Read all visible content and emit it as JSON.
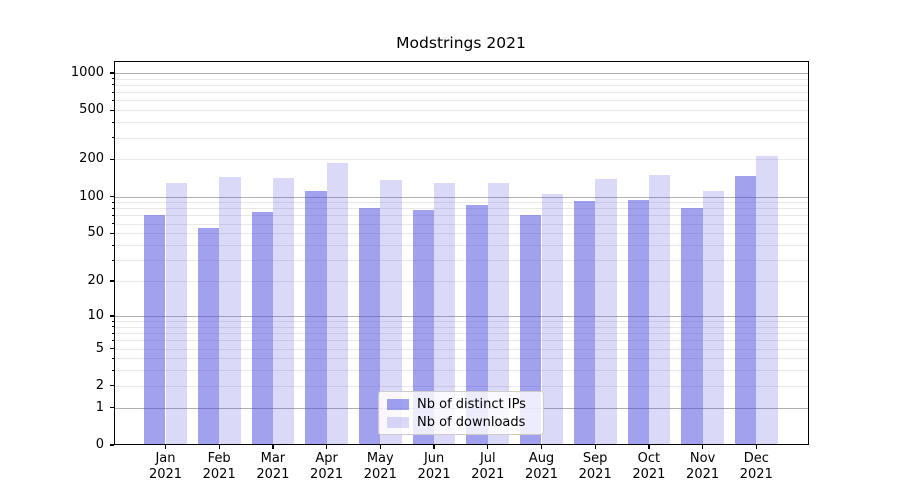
{
  "chart_data": {
    "type": "bar",
    "title": "Modstrings 2021",
    "categories": [
      "Jan\n2021",
      "Feb\n2021",
      "Mar\n2021",
      "Apr\n2021",
      "May\n2021",
      "Jun\n2021",
      "Jul\n2021",
      "Aug\n2021",
      "Sep\n2021",
      "Oct\n2021",
      "Nov\n2021",
      "Dec\n2021"
    ],
    "series": [
      {
        "name": "Nb of distinct IPs",
        "color": "rgba(68,68,221,0.5)",
        "values": [
          70,
          55,
          75,
          110,
          80,
          78,
          85,
          70,
          92,
          94,
          80,
          148
        ]
      },
      {
        "name": "Nb of downloads",
        "color": "rgba(68,68,221,0.2)",
        "values": [
          130,
          145,
          142,
          188,
          135,
          130,
          130,
          105,
          140,
          150,
          110,
          213
        ]
      }
    ],
    "xlabel": "",
    "ylabel": "",
    "yscale": "log1p",
    "ylim": [
      0,
      1250
    ],
    "yticks": [
      1000,
      500,
      200,
      100,
      50,
      20,
      10,
      5,
      2,
      1,
      0
    ],
    "grid": true,
    "legend_position": "lower-center",
    "colors": {
      "grid_major": "#b0b0b0",
      "grid_minor": "#e8e8e8",
      "axis": "#000000",
      "text": "#000000"
    }
  }
}
